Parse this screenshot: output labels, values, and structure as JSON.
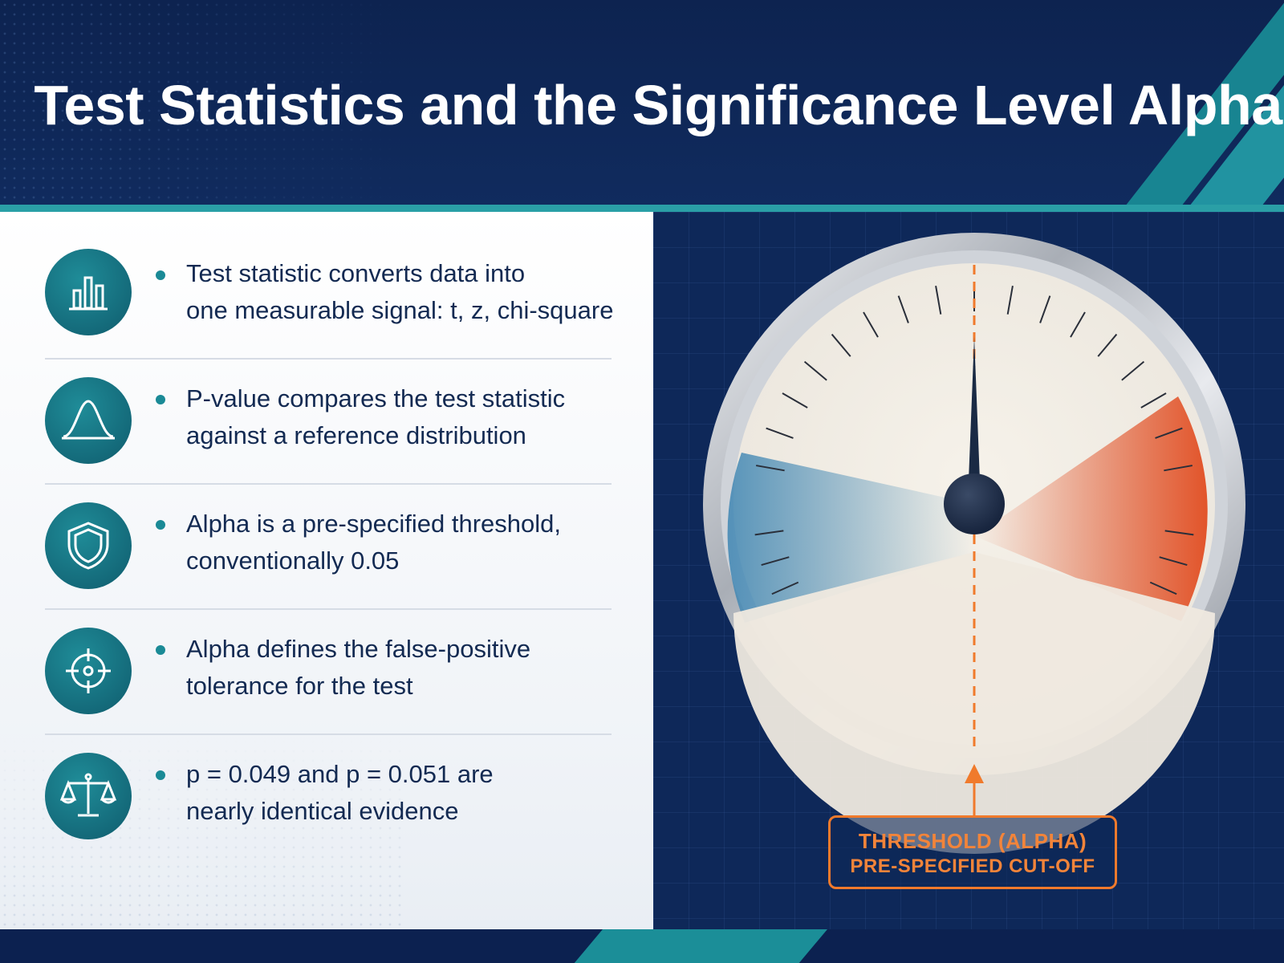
{
  "header": {
    "title": "Test Statistics and the Significance Level Alpha"
  },
  "points": [
    {
      "icon": "bar-chart-icon",
      "lines": [
        "Test statistic converts data into",
        "one measurable signal: t, z, chi-square"
      ]
    },
    {
      "icon": "bell-curve-icon",
      "lines": [
        "P-value compares the test statistic",
        "against a reference distribution"
      ]
    },
    {
      "icon": "shield-icon",
      "lines": [
        "Alpha is a pre-specified threshold,",
        "conventionally 0.05"
      ]
    },
    {
      "icon": "crosshair-icon",
      "lines": [
        "Alpha defines the false-positive",
        "tolerance for the test"
      ]
    },
    {
      "icon": "balance-scale-icon",
      "lines": [
        "p = 0.049 and p = 0.051 are",
        "nearly identical evidence"
      ]
    }
  ],
  "gauge": {
    "callout_line1": "THRESHOLD (ALPHA)",
    "callout_line2": "PRE-SPECIFIED CUT-OFF",
    "colors": {
      "threshold": "#f07a2c",
      "left_zone": "#3f86b3",
      "right_zone": "#e2542a",
      "needle": "#1a2a44"
    }
  }
}
